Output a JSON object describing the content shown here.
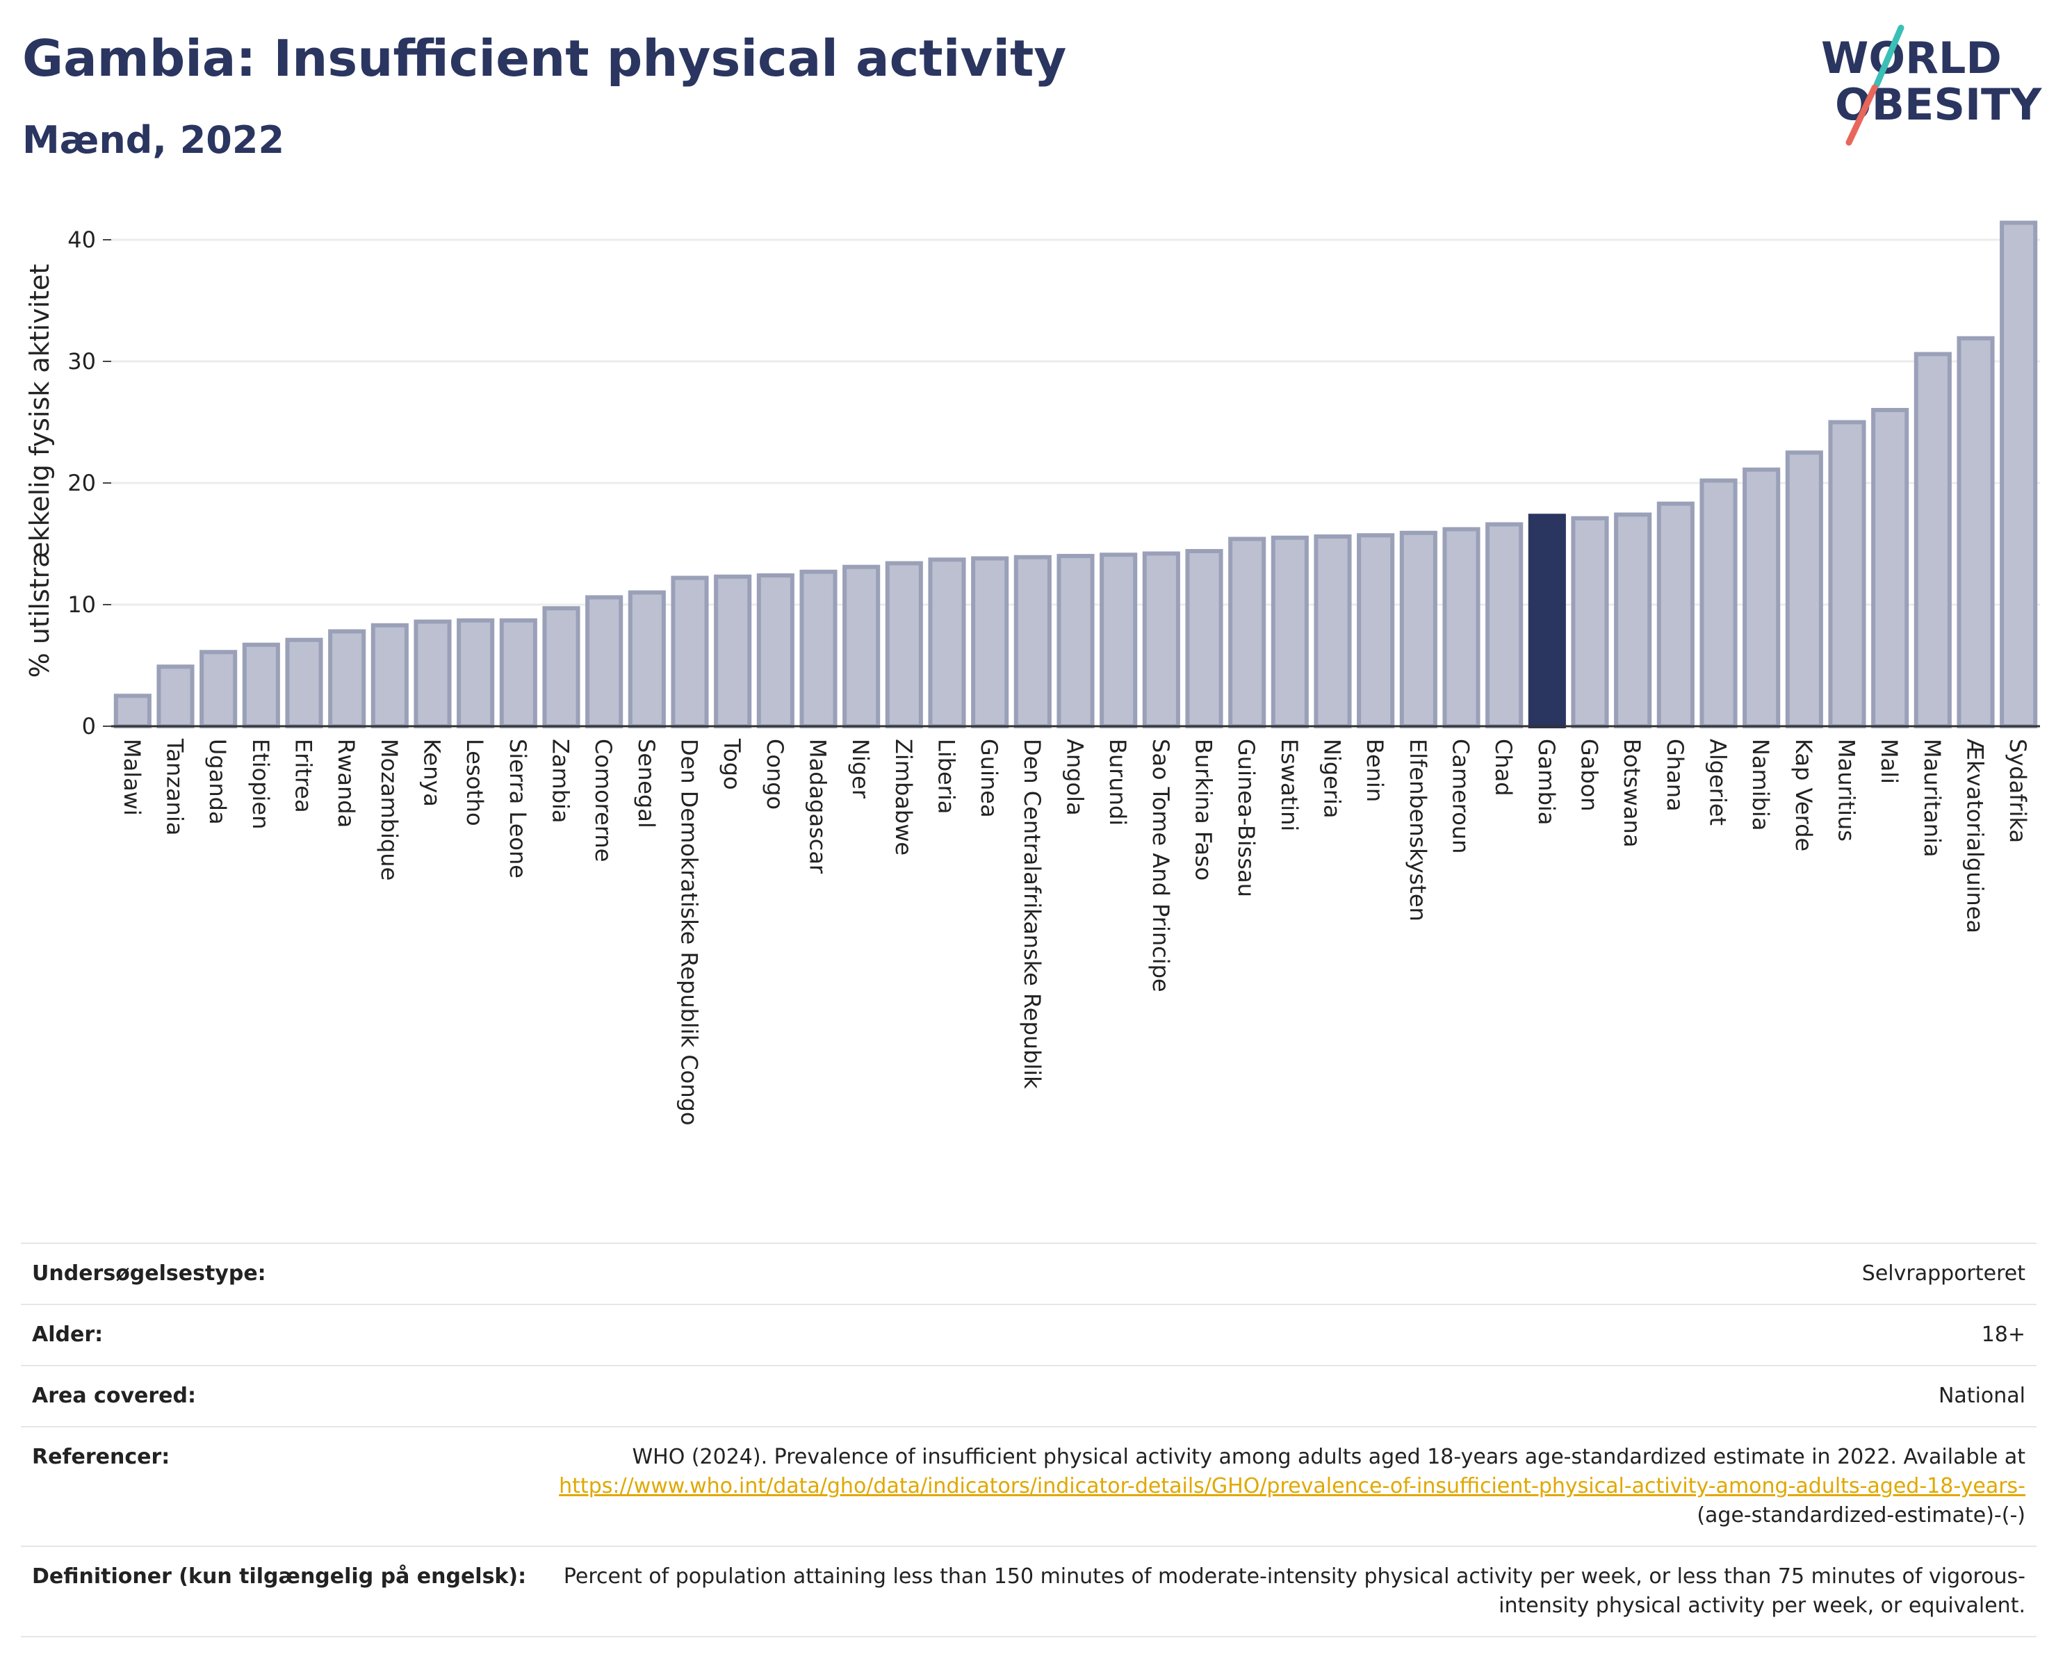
{
  "header": {
    "title": "Gambia: Insufficient physical activity",
    "subtitle": "Mænd, 2022",
    "logo_line1": "WORLD",
    "logo_line2": "OBESITY"
  },
  "colors": {
    "bar": "#bcc0d0",
    "bar_border": "#9aa0b8",
    "highlight": "#2a3560",
    "grid": "#ececec",
    "link": "#e0a800",
    "logo_teal": "#3bbfb6",
    "logo_coral": "#e8665a"
  },
  "chart_data": {
    "type": "bar",
    "title": "Gambia: Insufficient physical activity",
    "subtitle": "Mænd, 2022",
    "ylabel": "% utilstrækkelig fysisk aktivitet",
    "xlabel": "",
    "ylim": [
      0,
      42
    ],
    "yticks": [
      0,
      10,
      20,
      30,
      40
    ],
    "grid": true,
    "highlight": "Gambia",
    "categories": [
      "Malawi",
      "Tanzania",
      "Uganda",
      "Etiopien",
      "Eritrea",
      "Rwanda",
      "Mozambique",
      "Kenya",
      "Lesotho",
      "Sierra Leone",
      "Zambia",
      "Comorerne",
      "Senegal",
      "Den Demokratiske Republik Congo",
      "Togo",
      "Congo",
      "Madagascar",
      "Niger",
      "Zimbabwe",
      "Liberia",
      "Guinea",
      "Den Centralafrikanske Republik",
      "Angola",
      "Burundi",
      "Sao Tome And Principe",
      "Burkina Faso",
      "Guinea-Bissau",
      "Eswatini",
      "Nigeria",
      "Benin",
      "Elfenbenskysten",
      "Cameroun",
      "Chad",
      "Gambia",
      "Gabon",
      "Botswana",
      "Ghana",
      "Algeriet",
      "Namibia",
      "Kap Verde",
      "Mauritius",
      "Mali",
      "Mauritania",
      "Ækvatorialguinea",
      "Sydafrika"
    ],
    "values": [
      2.5,
      4.9,
      6.1,
      6.7,
      7.1,
      7.8,
      8.3,
      8.6,
      8.7,
      8.7,
      9.7,
      10.6,
      11.0,
      12.2,
      12.3,
      12.4,
      12.7,
      13.1,
      13.4,
      13.7,
      13.8,
      13.9,
      14.0,
      14.1,
      14.2,
      14.4,
      15.4,
      15.5,
      15.6,
      15.7,
      15.9,
      16.2,
      16.6,
      17.3,
      17.1,
      17.4,
      18.3,
      20.2,
      21.1,
      22.5,
      25.0,
      26.0,
      30.6,
      31.9,
      41.4
    ]
  },
  "info": {
    "rows": [
      {
        "label": "Undersøgelsestype:",
        "value": "Selvrapporteret"
      },
      {
        "label": "Alder:",
        "value": "18+"
      },
      {
        "label": "Area covered:",
        "value": "National"
      }
    ],
    "ref_label": "Referencer:",
    "ref_text": "WHO (2024). Prevalence of insufficient physical activity among adults aged 18-years age-standardized estimate in 2022. Available at",
    "ref_link": "https://www.who.int/data/gho/data/indicators/indicator-details/GHO/prevalence-of-insufficient-physical-activity-among-adults-aged-18-years-",
    "ref_suffix": "(age-standardized-estimate)-(-)",
    "def_label": "Definitioner (kun tilgængelig på engelsk):",
    "def_text": "Percent of population attaining less than 150 minutes of moderate-intensity physical activity per week, or less than 75 minutes of vigorous-intensity physical activity per week, or equivalent."
  }
}
